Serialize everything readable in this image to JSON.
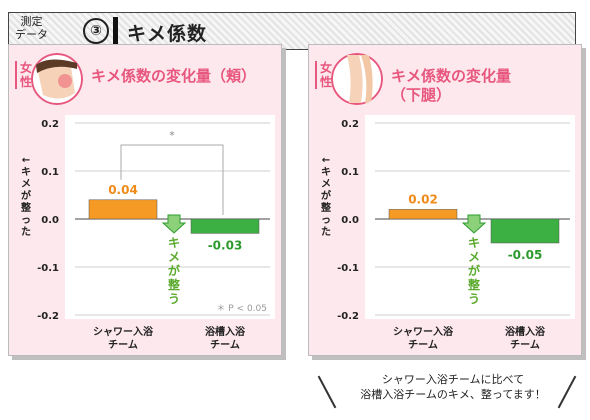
{
  "header": {
    "label_line1": "測定",
    "label_line2": "データ",
    "number": "③",
    "title": "キメ係数"
  },
  "panels": [
    {
      "gender": "女性",
      "title_line1": "キメ係数の変化量（頬）",
      "title_line2": "",
      "thumbnail": "face-cheek-icon",
      "y_axis_label": "← キメが整った",
      "arrow_label": "キメが整う",
      "significance_mark": "*",
      "significance_note": "＊ P < 0.05"
    },
    {
      "gender": "女性",
      "title_line1": "キメ係数の変化量",
      "title_line2": "（下腿）",
      "thumbnail": "lower-leg-icon",
      "y_axis_label": "← キメが整った",
      "arrow_label": "キメが整う",
      "significance_mark": "",
      "significance_note": ""
    }
  ],
  "chart_data": [
    {
      "type": "bar",
      "title": "キメ係数の変化量（頬）",
      "categories": [
        "シャワー入浴\nチーム",
        "浴槽入浴\nチーム"
      ],
      "values": [
        0.04,
        -0.03
      ],
      "value_labels": [
        "0.04",
        "-0.03"
      ],
      "colors": [
        "#f49a25",
        "#3cb043"
      ],
      "value_label_colors": [
        "#f08b1a",
        "#2e9a2e"
      ],
      "ylim": [
        -0.2,
        0.2
      ],
      "yticks": [
        "0.2",
        "0.1",
        "0.0",
        "-0.1",
        "-0.2"
      ],
      "ytick_values": [
        0.2,
        0.1,
        0.0,
        -0.1,
        -0.2
      ],
      "ylabel": "← キメが整った",
      "grid": true
    },
    {
      "type": "bar",
      "title": "キメ係数の変化量（下腿）",
      "categories": [
        "シャワー入浴\nチーム",
        "浴槽入浴\nチーム"
      ],
      "values": [
        0.02,
        -0.05
      ],
      "value_labels": [
        "0.02",
        "-0.05"
      ],
      "colors": [
        "#f49a25",
        "#3cb043"
      ],
      "value_label_colors": [
        "#f08b1a",
        "#2e9a2e"
      ],
      "ylim": [
        -0.2,
        0.2
      ],
      "yticks": [
        "0.2",
        "0.1",
        "0.0",
        "-0.1",
        "-0.2"
      ],
      "ytick_values": [
        0.2,
        0.1,
        0.0,
        -0.1,
        -0.2
      ],
      "ylabel": "← キメが整った",
      "grid": true
    }
  ],
  "bubble": {
    "line1": "シャワー入浴チームに比べて",
    "line2": "浴槽入浴チームのキメ、整ってます！"
  }
}
